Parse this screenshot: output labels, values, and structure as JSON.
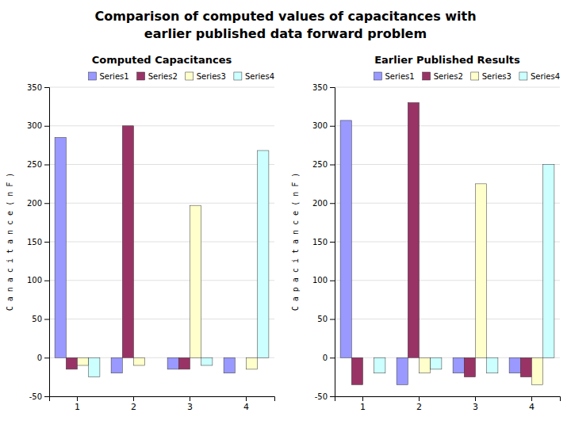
{
  "title": "Comparison of computed values of capacitances with\nearlier published data forward problem",
  "chart_data": [
    {
      "type": "bar",
      "title": "Computed Capacitances",
      "ylabel": "C a n a c i t a n c e ( n F )",
      "categories": [
        "1",
        "2",
        "3",
        "4"
      ],
      "series": [
        {
          "name": "Series1",
          "color": "#9999FF",
          "values": [
            285,
            -20,
            -15,
            -20
          ]
        },
        {
          "name": "Series2",
          "color": "#993366",
          "values": [
            -15,
            300,
            -15,
            0
          ]
        },
        {
          "name": "Series3",
          "color": "#FFFFCC",
          "values": [
            -10,
            -10,
            197,
            -15
          ]
        },
        {
          "name": "Series4",
          "color": "#CCFFFF",
          "values": [
            -25,
            0,
            -10,
            268
          ]
        }
      ],
      "ylim": [
        -50,
        350
      ],
      "yticks": [
        -50,
        0,
        50,
        100,
        150,
        200,
        250,
        300,
        350
      ],
      "grid": true,
      "legend": "upper right"
    },
    {
      "type": "bar",
      "title": "Earlier Published Results",
      "ylabel": "C a p a c i t a n c e ( n F )",
      "categories": [
        "1",
        "2",
        "3",
        "4"
      ],
      "series": [
        {
          "name": "Series1",
          "color": "#9999FF",
          "values": [
            307,
            -35,
            -20,
            -20
          ]
        },
        {
          "name": "Series2",
          "color": "#993366",
          "values": [
            -35,
            330,
            -25,
            -25
          ]
        },
        {
          "name": "Series3",
          "color": "#FFFFCC",
          "values": [
            0,
            -20,
            225,
            -35
          ]
        },
        {
          "name": "Series4",
          "color": "#CCFFFF",
          "values": [
            -20,
            -15,
            -20,
            250
          ]
        }
      ],
      "ylim": [
        -50,
        350
      ],
      "yticks": [
        -50,
        0,
        50,
        100,
        150,
        200,
        250,
        300,
        350
      ],
      "grid": true,
      "legend": "upper right"
    }
  ]
}
